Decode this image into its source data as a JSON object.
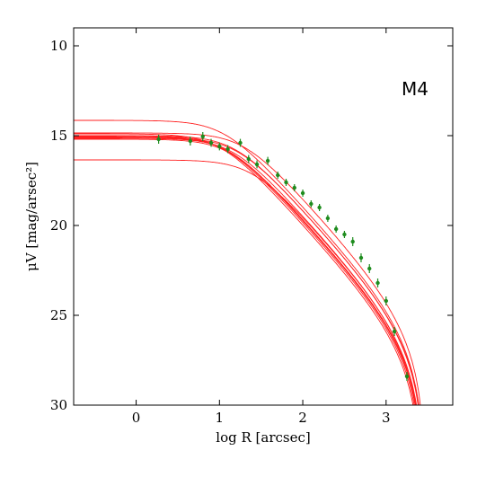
{
  "chart_data": {
    "type": "scatter",
    "title": "",
    "annotation": "M4",
    "xlabel": "log R [arcsec]",
    "ylabel": "μV [mag/arsec²]",
    "xlim": [
      -0.75,
      3.8
    ],
    "ylim": [
      30,
      9
    ],
    "y_inverted": true,
    "grid": false,
    "x_ticks": [
      0,
      1,
      2,
      3
    ],
    "y_ticks": [
      10,
      15,
      20,
      25,
      30
    ],
    "colors": {
      "points": "#1e8c1e",
      "models": "#ff2020",
      "axes": "#000000"
    },
    "series": [
      {
        "kind": "points",
        "x": [
          0.27,
          0.65,
          0.8,
          0.9,
          1.0,
          1.1,
          1.25,
          1.35,
          1.45,
          1.58,
          1.7,
          1.8,
          1.9,
          2.0,
          2.1,
          2.2,
          2.3,
          2.4,
          2.5,
          2.6,
          2.7,
          2.8,
          2.9,
          3.0,
          3.1,
          3.25
        ],
        "y": [
          15.2,
          15.3,
          15.05,
          15.4,
          15.6,
          15.75,
          15.4,
          16.3,
          16.6,
          16.4,
          17.2,
          17.6,
          17.9,
          18.2,
          18.8,
          19.0,
          19.6,
          20.2,
          20.5,
          20.9,
          21.8,
          22.4,
          23.2,
          24.2,
          25.9,
          28.4
        ],
        "yerr": [
          0.25,
          0.25,
          0.25,
          0.22,
          0.22,
          0.22,
          0.22,
          0.22,
          0.22,
          0.22,
          0.2,
          0.2,
          0.2,
          0.2,
          0.2,
          0.2,
          0.2,
          0.2,
          0.2,
          0.25,
          0.25,
          0.25,
          0.25,
          0.25,
          0.25,
          0.25
        ]
      },
      {
        "kind": "models",
        "x_end": 3.5,
        "curves": [
          {
            "mu0": 14.9,
            "rc": 1.0,
            "rt": 3.42
          },
          {
            "mu0": 15.0,
            "rc": 1.05,
            "rt": 3.43
          },
          {
            "mu0": 15.05,
            "rc": 1.08,
            "rt": 3.44
          },
          {
            "mu0": 15.1,
            "rc": 1.1,
            "rt": 3.45
          },
          {
            "mu0": 15.2,
            "rc": 1.12,
            "rt": 3.44
          },
          {
            "mu0": 15.0,
            "rc": 1.18,
            "rt": 3.46
          },
          {
            "mu0": 15.1,
            "rc": 1.2,
            "rt": 3.47
          },
          {
            "mu0": 14.85,
            "rc": 1.28,
            "rt": 3.47
          },
          {
            "mu0": 15.15,
            "rc": 1.15,
            "rt": 3.43
          },
          {
            "mu0": 14.15,
            "rc": 1.05,
            "rt": 3.46
          },
          {
            "mu0": 16.35,
            "rc": 1.38,
            "rt": 3.45
          }
        ]
      }
    ]
  }
}
